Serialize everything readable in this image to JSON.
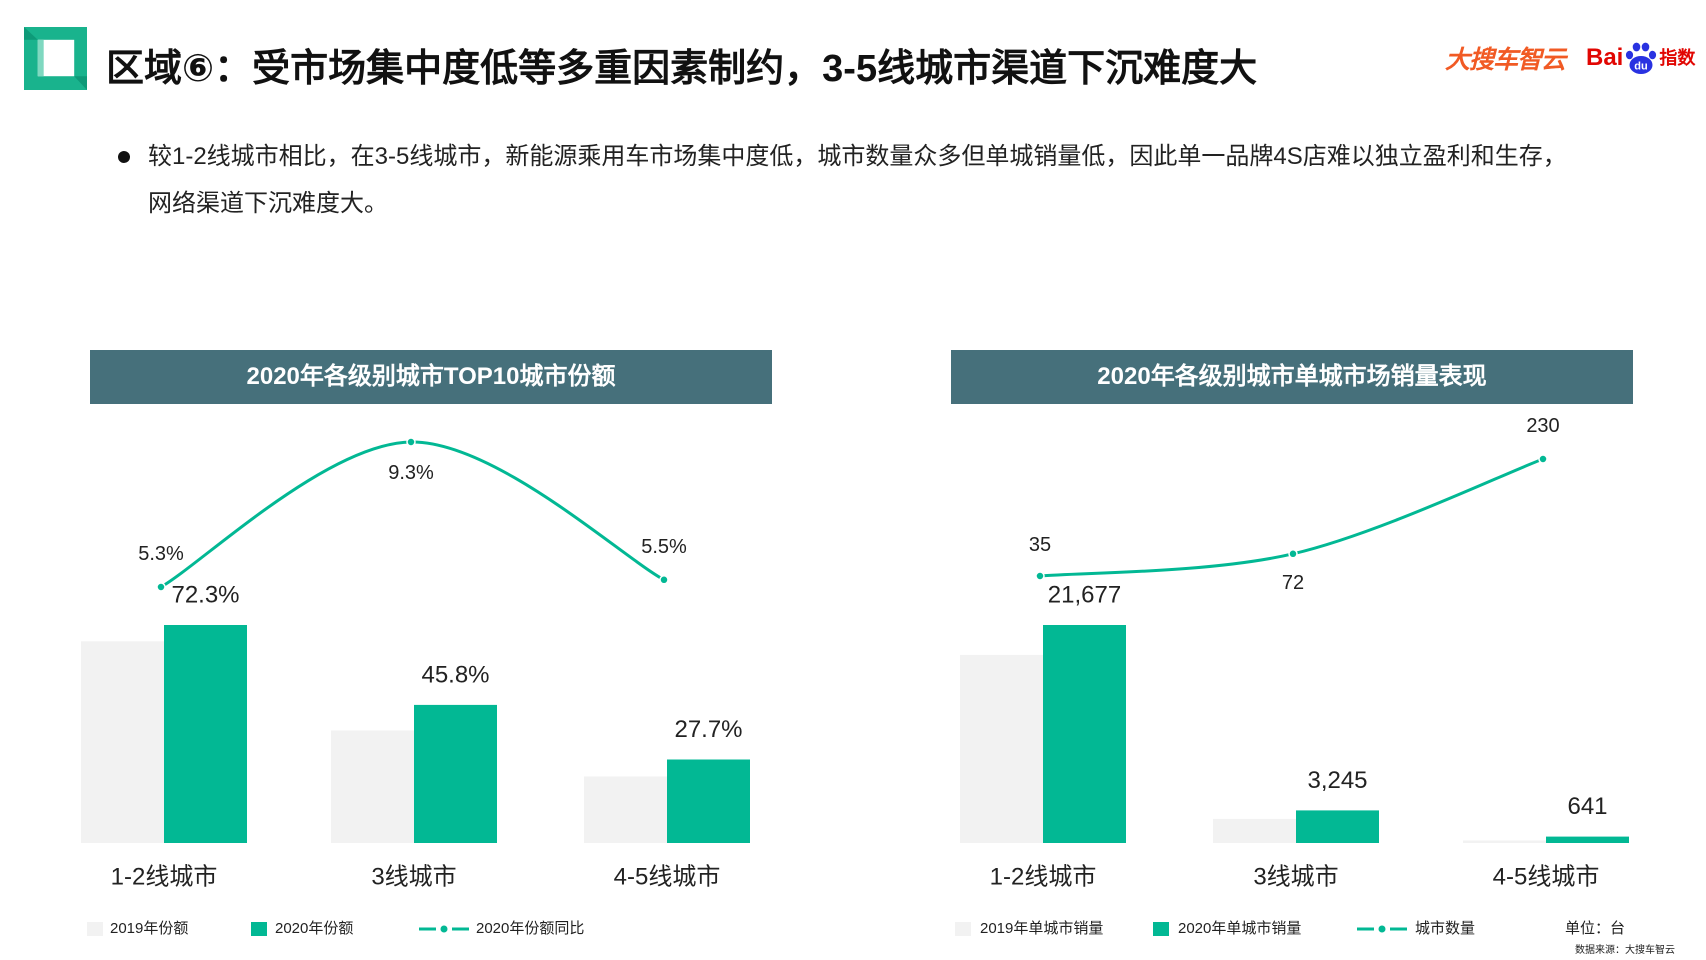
{
  "header": {
    "title": "区域⑥：受市场集中度低等多重因素制约，3-5线城市渠道下沉难度大",
    "logo_dasouche": "大搜车智云",
    "logo_baidu_bai": "Bai",
    "logo_baidu_du": "du",
    "logo_baidu_index": "指数"
  },
  "bullet": {
    "line1": "较1-2线城市相比，在3-5线城市，新能源乘用车市场集中度低，城市数量众多但单城销量低，因此单一品牌4S店难以独立盈利和生存，",
    "line2": "网络渠道下沉难度大。"
  },
  "theme": {
    "brand_green": "#19B38D",
    "panel_header": "#46707B",
    "title_text": "#111111",
    "dasouche_orange": "#F15A24",
    "baidu_red": "#E10602",
    "baidu_blue": "#2932E1"
  },
  "chart_data": [
    {
      "type": "bar",
      "title": "2020年各级别城市TOP10城市份额",
      "categories": [
        "1-2线城市",
        "3线城市",
        "4-5线城市"
      ],
      "series": [
        {
          "name": "2019年份额",
          "type": "bar",
          "color": "#F2F2F2",
          "values": [
            66.9,
            37.3,
            22.1
          ]
        },
        {
          "name": "2020年份额",
          "type": "bar",
          "color": "#02B894",
          "values": [
            72.3,
            45.8,
            27.7
          ],
          "labels": [
            "72.3%",
            "45.8%",
            "27.7%"
          ]
        },
        {
          "name": "2020年份额同比",
          "type": "line",
          "color": "#02B894",
          "values": [
            5.3,
            9.3,
            5.5
          ],
          "labels": [
            "5.3%",
            "9.3%",
            "5.5%"
          ]
        }
      ],
      "grid": false,
      "legend": "bottom-left"
    },
    {
      "type": "bar",
      "title": "2020年各级别城市单城市场销量表现",
      "categories": [
        "1-2线城市",
        "3线城市",
        "4-5线城市"
      ],
      "series": [
        {
          "name": "2019年单城市销量",
          "type": "bar",
          "color": "#F2F2F2",
          "values": [
            18700,
            2400,
            250
          ]
        },
        {
          "name": "2020年单城市销量",
          "type": "bar",
          "color": "#02B894",
          "values": [
            21677,
            3245,
            641
          ],
          "labels": [
            "21,677",
            "3,245",
            "641"
          ]
        },
        {
          "name": "城市数量",
          "type": "line",
          "color": "#02B894",
          "values": [
            35,
            72,
            230
          ],
          "labels": [
            "35",
            "72",
            "230"
          ]
        }
      ],
      "unit_note": "单位：台",
      "grid": false,
      "legend": "bottom-left"
    }
  ],
  "footer": {
    "source": "数据来源：大搜车智云"
  }
}
